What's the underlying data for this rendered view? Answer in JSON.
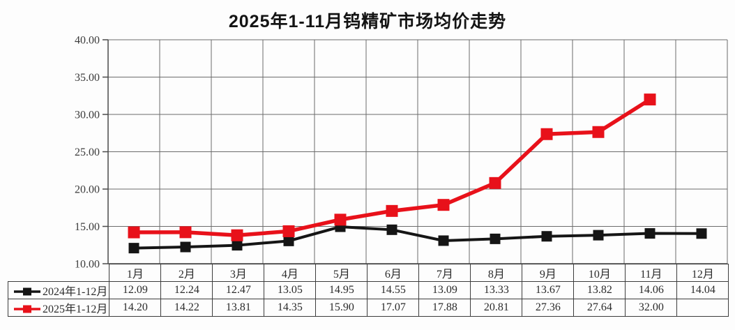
{
  "title": "2025年1-11月钨精矿市场均价走势",
  "colors": {
    "series_2024": "#151515",
    "series_2025": "#e8111a",
    "grid": "#6b6b6b",
    "axis": "#4a4a4a",
    "table_border": "#3c3c3c",
    "background": "#fdfdfd",
    "text": "#2b2b2b"
  },
  "chart_data": {
    "type": "line",
    "title": "2025年1-11月钨精矿市场均价走势",
    "categories": [
      "1月",
      "2月",
      "3月",
      "4月",
      "5月",
      "6月",
      "7月",
      "8月",
      "9月",
      "10月",
      "11月",
      "12月"
    ],
    "series": [
      {
        "name": "2024年1-12月",
        "color": "#151515",
        "values": [
          12.09,
          12.24,
          12.47,
          13.05,
          14.95,
          14.55,
          13.09,
          13.33,
          13.67,
          13.82,
          14.06,
          14.04
        ]
      },
      {
        "name": "2025年1-12月",
        "color": "#e8111a",
        "values": [
          14.2,
          14.22,
          13.81,
          14.35,
          15.9,
          17.07,
          17.88,
          20.81,
          27.36,
          27.64,
          32.0,
          null
        ]
      }
    ],
    "xlabel": "",
    "ylabel": "",
    "ylim": [
      10,
      40
    ],
    "ytick_step": 5,
    "ytick_labels": [
      "10.00",
      "15.00",
      "20.00",
      "25.00",
      "30.00",
      "35.00",
      "40.00"
    ],
    "grid": true,
    "legend_position": "table-left",
    "data_table_shown": true
  }
}
